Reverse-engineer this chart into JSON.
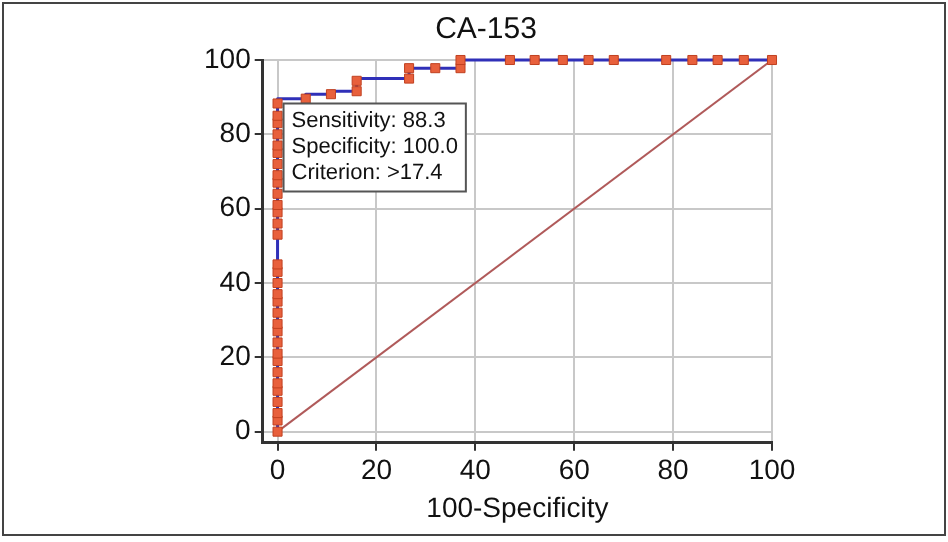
{
  "chart_data": {
    "type": "step",
    "title": "CA-153",
    "xlabel": "100-Specificity",
    "xlim": [
      -3,
      100
    ],
    "ylim": [
      -3,
      100
    ],
    "xticks": [
      0,
      20,
      40,
      60,
      80,
      100
    ],
    "yticks": [
      0,
      20,
      40,
      60,
      80,
      100
    ],
    "grid": true,
    "legend": false,
    "series": [
      {
        "color": "#3030b8",
        "marker": "none",
        "x": [
          0,
          0,
          0,
          0,
          0,
          0,
          0,
          0,
          0,
          0,
          0,
          0,
          0,
          0,
          0,
          0,
          0,
          0,
          0,
          0,
          0,
          0,
          0,
          0,
          0,
          0,
          0,
          0,
          0,
          0,
          0,
          0,
          5.7,
          10.8,
          16,
          16,
          26.6,
          26.6,
          31.9,
          37,
          37,
          47,
          52,
          57.7,
          62.9,
          68,
          78.6,
          83.9,
          89,
          94.3,
          100
        ],
        "values": [
          0,
          3,
          5,
          8,
          11,
          13,
          16,
          19,
          21,
          24,
          27,
          29,
          32,
          35,
          37,
          40,
          43,
          45,
          53,
          56,
          59,
          61,
          64,
          67,
          69,
          72,
          75,
          77,
          80,
          83,
          85,
          88.3,
          89.6,
          90.8,
          91.6,
          94.4,
          95,
          97.8,
          97.8,
          97.8,
          100,
          100,
          100,
          100,
          100,
          100,
          100,
          100,
          100,
          100,
          100
        ]
      },
      {
        "type": "scatter",
        "color": "#e8603c",
        "marker": "square",
        "x": [
          0,
          0,
          0,
          0,
          0,
          0,
          0,
          0,
          0,
          0,
          0,
          0,
          0,
          0,
          0,
          0,
          0,
          0,
          0,
          0,
          0,
          0,
          0,
          0,
          0,
          0,
          0,
          0,
          0,
          0,
          0,
          0,
          5.7,
          10.8,
          16,
          16,
          26.6,
          26.6,
          31.9,
          37,
          37,
          47,
          52,
          57.7,
          62.9,
          68,
          78.6,
          83.9,
          89,
          94.3,
          100
        ],
        "values": [
          0,
          3,
          5,
          8,
          11,
          13,
          16,
          19,
          21,
          24,
          27,
          29,
          32,
          35,
          37,
          40,
          43,
          45,
          53,
          56,
          59,
          61,
          64,
          67,
          69,
          72,
          75,
          77,
          80,
          83,
          85,
          88.3,
          89.6,
          90.8,
          91.6,
          94.4,
          95,
          97.8,
          97.8,
          97.8,
          100,
          100,
          100,
          100,
          100,
          100,
          100,
          100,
          100,
          100,
          100
        ]
      },
      {
        "type": "line",
        "color": "#b05a5a",
        "marker": "none",
        "x": [
          0,
          100
        ],
        "values": [
          0,
          100
        ]
      }
    ],
    "annotations": [
      {
        "text": "Sensitivity: 88.3\nSpecificity: 100.0\nCriterion: >17.4",
        "x": 0,
        "y": 88.3
      }
    ]
  }
}
